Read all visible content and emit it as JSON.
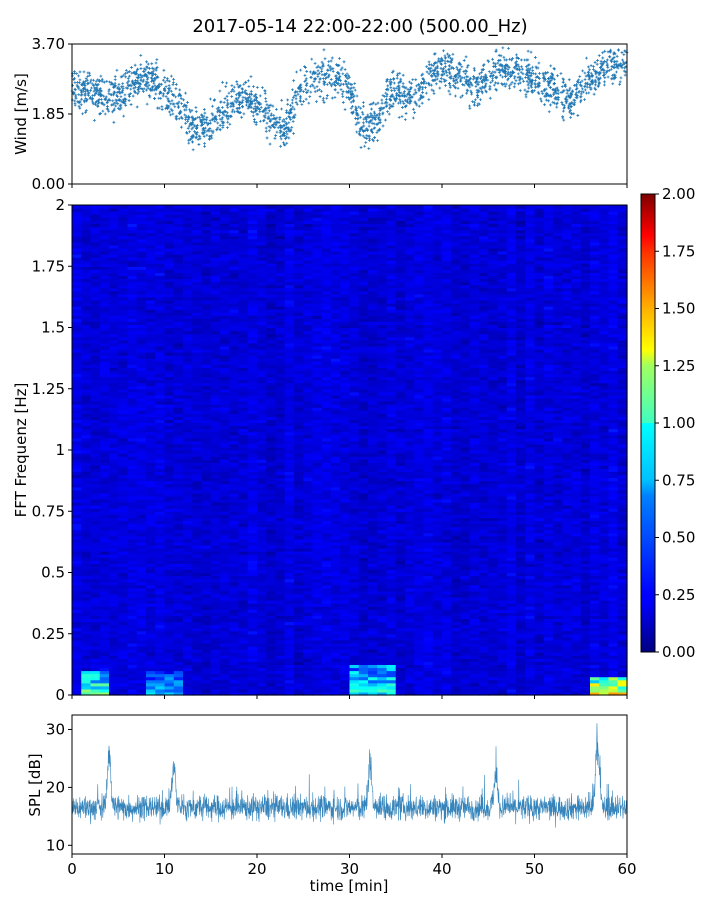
{
  "title": "2017-05-14 22:00-22:00 (500.00_Hz)",
  "chart_data": [
    {
      "type": "scatter",
      "panel": "wind",
      "ylabel": "Wind [m/s]",
      "ylim": [
        0,
        3.7
      ],
      "xlim": [
        0,
        60
      ],
      "yticks": [
        0,
        1.85,
        3.7
      ],
      "ytick_labels": [
        "0.00",
        "1.85",
        "3.70"
      ],
      "marker": "+",
      "color": "#1f77b4",
      "profile": {
        "x": [
          0,
          2,
          4,
          6,
          8,
          10,
          12,
          13,
          15,
          17,
          19,
          21,
          23,
          25,
          27,
          28,
          30,
          31,
          32,
          33,
          34,
          35,
          36,
          38,
          40,
          42,
          44,
          46,
          48,
          50,
          52,
          54,
          56,
          58,
          60
        ],
        "y_center": [
          2.6,
          2.4,
          2.2,
          2.5,
          2.8,
          2.4,
          2.0,
          1.4,
          1.6,
          2.1,
          2.3,
          1.9,
          1.5,
          2.6,
          2.8,
          2.9,
          2.5,
          1.6,
          1.5,
          1.8,
          2.2,
          2.6,
          2.2,
          2.6,
          3.1,
          2.9,
          2.5,
          3.1,
          3.0,
          2.8,
          2.5,
          2.2,
          2.8,
          3.1,
          3.1
        ],
        "y_min": [
          1.1,
          1.1,
          1.0,
          1.2,
          1.4,
          1.0,
          0.7,
          0.55,
          0.6,
          0.8,
          1.0,
          0.8,
          0.7,
          1.2,
          1.5,
          1.6,
          1.2,
          0.8,
          0.7,
          0.8,
          1.0,
          1.3,
          1.0,
          1.2,
          1.6,
          1.5,
          1.2,
          1.5,
          1.4,
          1.2,
          1.0,
          0.6,
          1.2,
          1.8,
          2.0
        ],
        "y_max": [
          3.4,
          3.4,
          3.3,
          3.4,
          3.5,
          3.4,
          3.3,
          3.3,
          3.3,
          3.4,
          3.4,
          3.4,
          3.3,
          3.5,
          3.6,
          3.6,
          3.5,
          3.4,
          3.3,
          3.4,
          3.5,
          3.5,
          3.3,
          3.5,
          3.6,
          3.6,
          3.5,
          3.6,
          3.6,
          3.5,
          3.5,
          3.4,
          3.6,
          3.6,
          3.6
        ]
      }
    },
    {
      "type": "heatmap",
      "panel": "spectrogram",
      "ylabel": "FFT Frequenz [Hz]",
      "ylim": [
        0,
        2
      ],
      "xlim": [
        0,
        60
      ],
      "yticks": [
        0,
        0.25,
        0.5,
        0.75,
        1,
        1.25,
        1.5,
        1.75,
        2
      ],
      "ytick_labels": [
        "0",
        "0.25",
        "0.5",
        "0.75",
        "1",
        "1.25",
        "1.5",
        "1.75",
        "2"
      ],
      "colormap": "jet",
      "clim": [
        0,
        2
      ],
      "colorbar_ticks": [
        "0.00",
        "0.25",
        "0.50",
        "0.75",
        "1.00",
        "1.25",
        "1.50",
        "1.75",
        "2.00"
      ],
      "background_level": 0.18,
      "hotspots": [
        {
          "x0": 1.0,
          "x1": 4.2,
          "f0": 0.0,
          "f1": 0.1,
          "value": 1.1
        },
        {
          "x0": 8.5,
          "x1": 11.5,
          "f0": 0.0,
          "f1": 0.1,
          "value": 0.75
        },
        {
          "x0": 30.5,
          "x1": 34.5,
          "f0": 0.0,
          "f1": 0.13,
          "value": 0.95
        },
        {
          "x0": 56.5,
          "x1": 60.0,
          "f0": 0.0,
          "f1": 0.07,
          "value": 1.5
        }
      ]
    },
    {
      "type": "line",
      "panel": "spl",
      "ylabel": "SPL [dB]",
      "xlabel": "time [min]",
      "ylim": [
        8.5,
        32.5
      ],
      "xlim": [
        0,
        60
      ],
      "yticks": [
        10,
        20,
        30
      ],
      "xticks": [
        0,
        10,
        20,
        30,
        40,
        50,
        60
      ],
      "color": "#1f77b4",
      "baseline_db": 16.5,
      "noise_db": 2.5,
      "peaks": [
        {
          "x": 4.0,
          "y": 27
        },
        {
          "x": 11.0,
          "y": 25
        },
        {
          "x": 32.2,
          "y": 25.5
        },
        {
          "x": 45.8,
          "y": 23.5
        },
        {
          "x": 56.8,
          "y": 31
        }
      ]
    }
  ]
}
